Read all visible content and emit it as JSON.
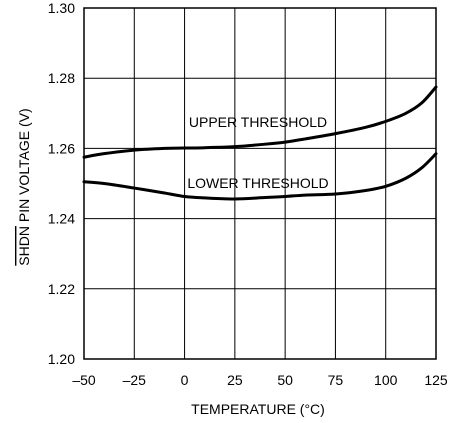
{
  "chart_data": {
    "type": "line",
    "xlabel": "TEMPERATURE (°C)",
    "ylabel_overline": "SHDN",
    "ylabel_rest": " PIN VOLTAGE (V)",
    "xlim": [
      -50,
      125
    ],
    "ylim": [
      1.2,
      1.3
    ],
    "x_ticks": [
      -50,
      -25,
      0,
      25,
      50,
      75,
      100,
      125
    ],
    "x_tick_labels": [
      "–50",
      "–25",
      "0",
      "25",
      "50",
      "75",
      "100",
      "125"
    ],
    "y_ticks": [
      1.2,
      1.22,
      1.24,
      1.26,
      1.28,
      1.3
    ],
    "y_tick_labels": [
      "1.20",
      "1.22",
      "1.24",
      "1.26",
      "1.28",
      "1.30"
    ],
    "grid": true,
    "series": [
      {
        "name": "UPPER THRESHOLD",
        "x": [
          -50,
          -40,
          -25,
          -10,
          0,
          10,
          25,
          40,
          50,
          60,
          75,
          90,
          100,
          110,
          118,
          125
        ],
        "values": [
          1.2575,
          1.2585,
          1.2595,
          1.26,
          1.2601,
          1.2602,
          1.2605,
          1.2612,
          1.2618,
          1.2627,
          1.2642,
          1.266,
          1.2677,
          1.27,
          1.273,
          1.2775
        ]
      },
      {
        "name": "LOWER THRESHOLD",
        "x": [
          -50,
          -40,
          -25,
          -10,
          0,
          10,
          25,
          40,
          50,
          60,
          75,
          90,
          100,
          110,
          118,
          125
        ],
        "values": [
          1.2505,
          1.25,
          1.2487,
          1.2473,
          1.2463,
          1.2459,
          1.2456,
          1.246,
          1.2463,
          1.2467,
          1.247,
          1.248,
          1.2492,
          1.2515,
          1.2545,
          1.2585
        ]
      }
    ]
  }
}
